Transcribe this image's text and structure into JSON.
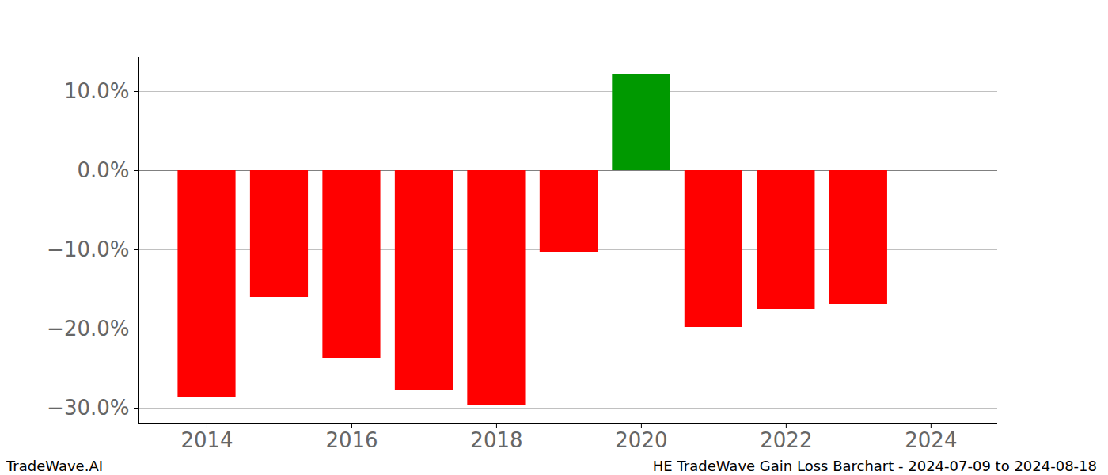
{
  "chart_data": {
    "type": "bar",
    "title": "HE TradeWave Gain Loss Barchart - 2024-07-09 to 2024-08-18",
    "annotations": [
      "TradeWave.AI"
    ],
    "x": [
      2014,
      2015,
      2016,
      2017,
      2018,
      2019,
      2020,
      2021,
      2022,
      2023
    ],
    "values": [
      -28.7,
      -16.0,
      -23.7,
      -27.7,
      -29.6,
      -10.3,
      12.1,
      -19.8,
      -17.5,
      -16.9
    ],
    "colors": [
      "#ff0000",
      "#ff0000",
      "#ff0000",
      "#ff0000",
      "#ff0000",
      "#ff0000",
      "#009900",
      "#ff0000",
      "#ff0000",
      "#ff0000"
    ],
    "xlim": [
      2013.06,
      2024.92
    ],
    "xticks": [
      2014,
      2016,
      2018,
      2020,
      2022,
      2024
    ],
    "ylim": [
      -31.9,
      14.3
    ],
    "yticks": [
      {
        "value": -30,
        "label": "−30.0%"
      },
      {
        "value": -20,
        "label": "−20.0%"
      },
      {
        "value": -10,
        "label": "−10.0%"
      },
      {
        "value": 0,
        "label": "0.0%"
      },
      {
        "value": 10,
        "label": "10.0%"
      }
    ],
    "grid": true
  }
}
